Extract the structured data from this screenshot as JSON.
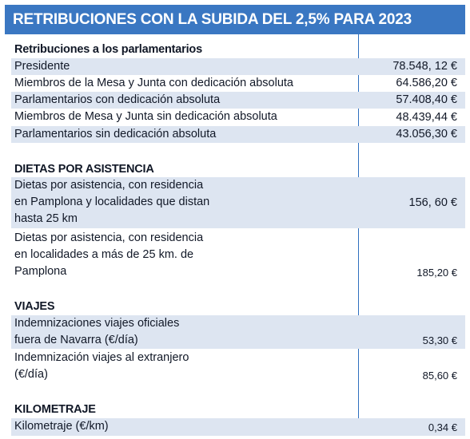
{
  "title": "RETRIBUCIONES CON LA SUBIDA DEL 2,5% PARA 2023",
  "sections": {
    "parlamentarios": {
      "heading": "Retribuciones a los parlamentarios",
      "rows": [
        {
          "label": "Presidente",
          "value": "78.548, 12 €"
        },
        {
          "label": "Miembros de la Mesa y Junta con dedicación absoluta",
          "value": "64.586,20 €"
        },
        {
          "label": "Parlamentarios con dedicación absoluta",
          "value": "57.408,40 €"
        },
        {
          "label": "Miembros de Mesa y Junta sin dedicación absoluta",
          "value": "48.439,44 €"
        },
        {
          "label": "Parlamentarios sin dedicación absoluta",
          "value": "43.056,30 €"
        }
      ]
    },
    "dietas": {
      "heading": "DIETAS POR ASISTENCIA",
      "rows": [
        {
          "lines": [
            "Dietas por asistencia, con residencia",
            "en Pamplona y localidades que distan",
            "hasta 25 km"
          ],
          "value": "156, 60 €"
        },
        {
          "lines": [
            "Dietas por asistencia, con residencia",
            "en localidades a más de 25 km. de",
            "Pamplona"
          ],
          "value": "185,20 €"
        }
      ]
    },
    "viajes": {
      "heading": "VIAJES",
      "rows": [
        {
          "lines": [
            "Indemnizaciones viajes oficiales",
            "fuera de Navarra (€/día)"
          ],
          "value": "53,30 €"
        },
        {
          "lines": [
            "Indemnización viajes al extranjero",
            "(€/día)"
          ],
          "value": "85,60 €"
        }
      ]
    },
    "kilometraje": {
      "heading": "KILOMETRAJE",
      "rows": [
        {
          "label": "Kilometraje (€/km)",
          "value": "0,34 €"
        }
      ]
    }
  },
  "colors": {
    "header_bg": "#3a77c2",
    "row_shade": "#dde5f1",
    "divider": "#2f6fbf"
  }
}
